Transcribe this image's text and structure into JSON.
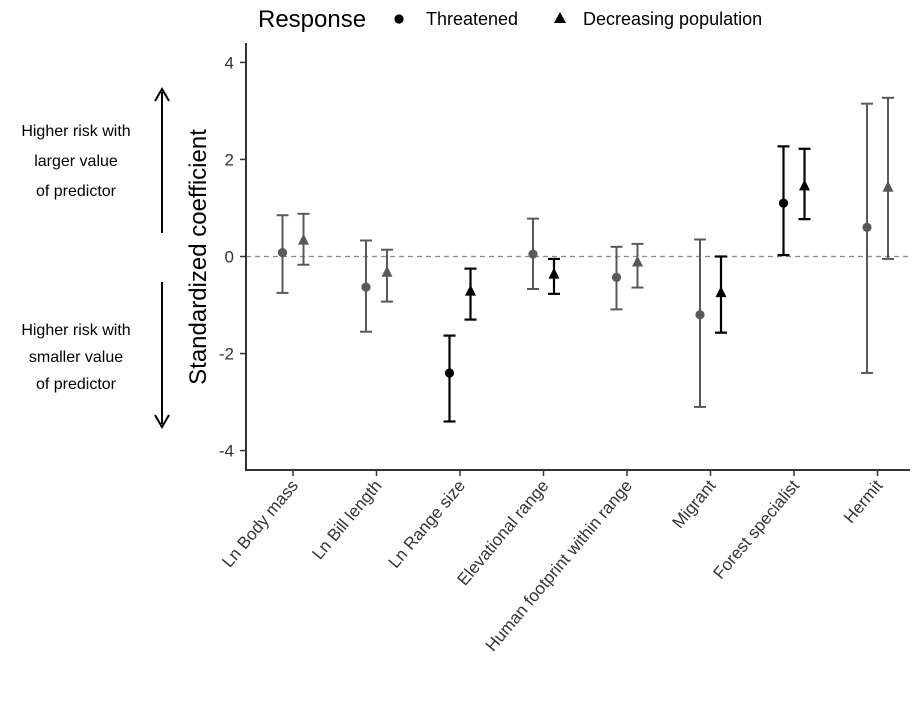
{
  "chart_data": {
    "type": "scatter",
    "subtype": "coefficient-plot-with-error-bars",
    "legend": {
      "title": "Response",
      "placement": "top",
      "entries": [
        {
          "label": "Threatened",
          "shape": "circle"
        },
        {
          "label": "Decreasing population",
          "shape": "triangle"
        }
      ]
    },
    "ylabel": "Standardized coefficient",
    "xlabel": "",
    "ylim": [
      -4.4,
      4.4
    ],
    "yticks": [
      -4,
      -2,
      0,
      2,
      4
    ],
    "ytick_labels": [
      "-4",
      "-2",
      "0",
      "2",
      "4"
    ],
    "reference_line": {
      "y": 0,
      "style": "dashed"
    },
    "grid": false,
    "categories": [
      "Ln Body mass",
      "Ln Bill length",
      "Ln Range size",
      "Elevational range",
      "Human footprint within range",
      "Migrant",
      "Forest specialist",
      "Hermit"
    ],
    "series": [
      {
        "name": "Threatened",
        "shape": "circle",
        "points": [
          {
            "category": "Ln Body mass",
            "estimate": 0.08,
            "lower": -0.75,
            "upper": 0.85,
            "significant": false
          },
          {
            "category": "Ln Bill length",
            "estimate": -0.63,
            "lower": -1.55,
            "upper": 0.33,
            "significant": false
          },
          {
            "category": "Ln Range size",
            "estimate": -2.4,
            "lower": -3.4,
            "upper": -1.63,
            "significant": true
          },
          {
            "category": "Elevational range",
            "estimate": 0.05,
            "lower": -0.67,
            "upper": 0.78,
            "significant": false
          },
          {
            "category": "Human footprint within range",
            "estimate": -0.43,
            "lower": -1.09,
            "upper": 0.2,
            "significant": false
          },
          {
            "category": "Migrant",
            "estimate": -1.2,
            "lower": -3.1,
            "upper": 0.35,
            "significant": false
          },
          {
            "category": "Forest specialist",
            "estimate": 1.1,
            "lower": 0.03,
            "upper": 2.27,
            "significant": true
          },
          {
            "category": "Hermit",
            "estimate": 0.6,
            "lower": -2.4,
            "upper": 3.15,
            "significant": false
          }
        ]
      },
      {
        "name": "Decreasing population",
        "shape": "triangle",
        "points": [
          {
            "category": "Ln Body mass",
            "estimate": 0.33,
            "lower": -0.17,
            "upper": 0.88,
            "significant": false
          },
          {
            "category": "Ln Bill length",
            "estimate": -0.33,
            "lower": -0.93,
            "upper": 0.14,
            "significant": false
          },
          {
            "category": "Ln Range size",
            "estimate": -0.72,
            "lower": -1.3,
            "upper": -0.25,
            "significant": true
          },
          {
            "category": "Elevational range",
            "estimate": -0.37,
            "lower": -0.77,
            "upper": -0.05,
            "significant": true
          },
          {
            "category": "Human footprint within range",
            "estimate": -0.12,
            "lower": -0.64,
            "upper": 0.26,
            "significant": false
          },
          {
            "category": "Migrant",
            "estimate": -0.75,
            "lower": -1.57,
            "upper": 0.0,
            "significant": true
          },
          {
            "category": "Forest specialist",
            "estimate": 1.45,
            "lower": 0.77,
            "upper": 2.22,
            "significant": true
          },
          {
            "category": "Hermit",
            "estimate": 1.42,
            "lower": -0.05,
            "upper": 3.27,
            "significant": false
          }
        ]
      }
    ],
    "colors": {
      "significant": "#000000",
      "not_significant": "#595959",
      "axis": "#333333",
      "reference_line": "#8c8c8c"
    },
    "annotations": [
      {
        "lines": [
          "Higher risk with",
          "larger value",
          "of predictor"
        ],
        "arrow": "up"
      },
      {
        "lines": [
          "Higher risk with",
          "smaller value",
          "of predictor"
        ],
        "arrow": "down"
      }
    ]
  }
}
